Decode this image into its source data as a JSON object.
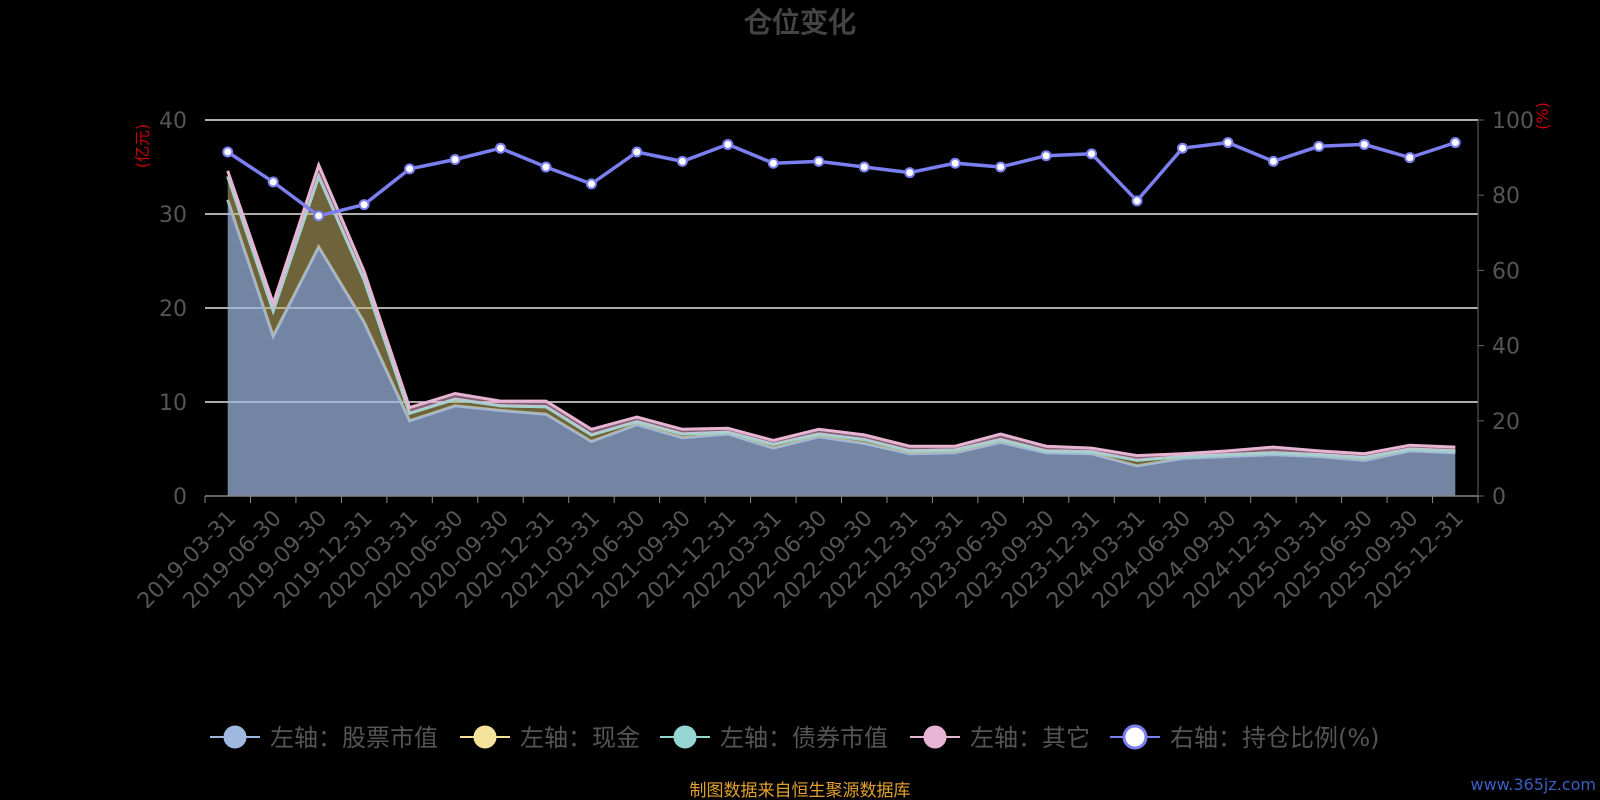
{
  "chart_data": {
    "type": "area",
    "title": "仓位变化",
    "left_axis_unit": "(亿元)",
    "right_axis_unit": "(%)",
    "left_ylim": [
      0,
      40
    ],
    "left_yticks": [
      0,
      10,
      20,
      30,
      40
    ],
    "right_ylim": [
      0,
      100
    ],
    "right_yticks": [
      0,
      20,
      40,
      60,
      80,
      100
    ],
    "grid": true,
    "legend_position": "bottom",
    "categories": [
      "2019-03-31",
      "2019-06-30",
      "2019-09-30",
      "2019-12-31",
      "2020-03-31",
      "2020-06-30",
      "2020-09-30",
      "2020-12-31",
      "2021-03-31",
      "2021-06-30",
      "2021-09-30",
      "2021-12-31",
      "2022-03-31",
      "2022-06-30",
      "2022-09-30",
      "2022-12-31",
      "2023-03-31",
      "2023-06-30",
      "2023-09-30",
      "2023-12-31",
      "2024-03-31",
      "2024-06-30",
      "2024-09-30",
      "2024-12-31",
      "2025-03-31",
      "2025-06-30",
      "2025-09-30",
      "2025-12-31"
    ],
    "series": [
      {
        "name": "左轴：股票市值",
        "axis": "left",
        "type": "area",
        "color": "#9fb8e0",
        "values": [
          31.5,
          17.0,
          26.5,
          18.5,
          8.0,
          9.6,
          9.1,
          8.7,
          5.8,
          7.6,
          6.2,
          6.6,
          5.1,
          6.3,
          5.6,
          4.5,
          4.6,
          5.7,
          4.6,
          4.5,
          3.2,
          4.0,
          4.2,
          4.4,
          4.2,
          3.8,
          4.8,
          4.6
        ]
      },
      {
        "name": "左轴：现金",
        "axis": "left",
        "type": "area",
        "color": "#f5e39c",
        "values": [
          2.5,
          2.7,
          7.5,
          4.5,
          0.8,
          0.7,
          0.5,
          0.8,
          0.7,
          0.3,
          0.4,
          0.2,
          0.4,
          0.3,
          0.4,
          0.3,
          0.3,
          0.3,
          0.2,
          0.2,
          0.6,
          0.2,
          0.2,
          0.2,
          0.2,
          0.3,
          0.2,
          0.2
        ]
      },
      {
        "name": "左轴：债券市值",
        "axis": "left",
        "type": "area",
        "color": "#96d6d2",
        "values": [
          0,
          0,
          0,
          0,
          0,
          0,
          0,
          0,
          0,
          0,
          0,
          0,
          0,
          0,
          0,
          0,
          0,
          0,
          0,
          0,
          0,
          0,
          0,
          0,
          0,
          0,
          0,
          0
        ]
      },
      {
        "name": "左轴：其它",
        "axis": "left",
        "type": "area",
        "color": "#e8b4d4",
        "values": [
          0.6,
          0.8,
          1.2,
          0.9,
          0.6,
          0.6,
          0.5,
          0.6,
          0.6,
          0.5,
          0.5,
          0.4,
          0.4,
          0.5,
          0.5,
          0.5,
          0.4,
          0.6,
          0.5,
          0.4,
          0.5,
          0.3,
          0.4,
          0.6,
          0.4,
          0.4,
          0.4,
          0.4
        ]
      },
      {
        "name": "右轴：持仓比例(%)",
        "axis": "right",
        "type": "line",
        "color": "#7b7ff0",
        "values": [
          91.5,
          83.5,
          74.5,
          77.5,
          87.0,
          89.5,
          92.5,
          87.5,
          83.0,
          91.5,
          89.0,
          93.5,
          88.5,
          89.0,
          87.5,
          86.0,
          88.5,
          87.5,
          90.5,
          91.0,
          78.5,
          92.5,
          94.0,
          89.0,
          93.0,
          93.5,
          90.0,
          94.0
        ]
      }
    ]
  },
  "footer": {
    "source": "制图数据来自恒生聚源数据库",
    "watermark": "www.365jz.com"
  }
}
